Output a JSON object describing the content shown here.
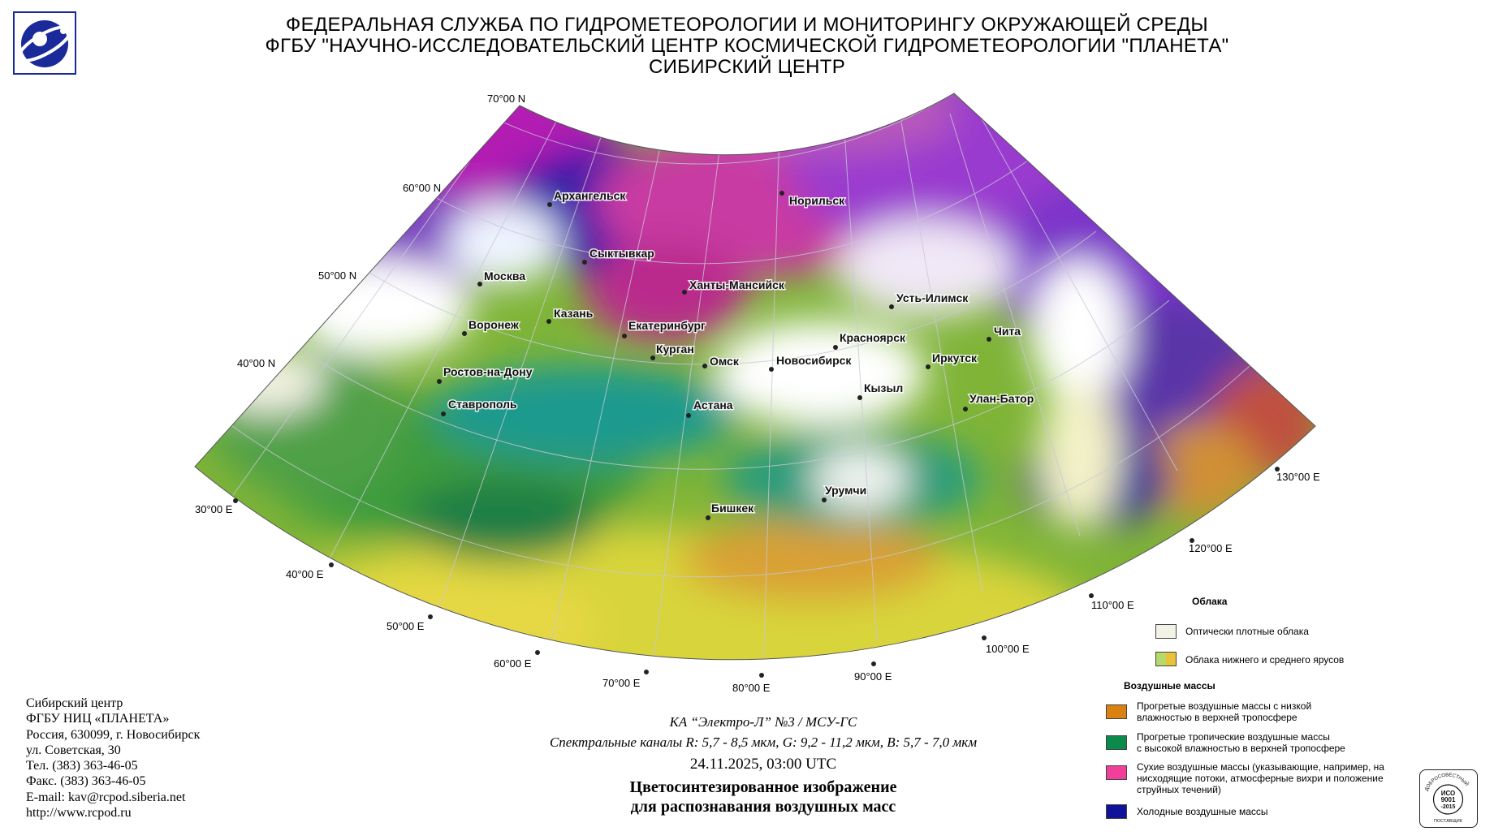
{
  "header": {
    "line1": "ФЕДЕРАЛЬНАЯ СЛУЖБА ПО ГИДРОМЕТЕОРОЛОГИИ И МОНИТОРИНГУ ОКРУЖАЮЩЕЙ СРЕДЫ",
    "line2": "ФГБУ \"НАУЧНО-ИССЛЕДОВАТЕЛЬСКИЙ ЦЕНТР КОСМИЧЕСКОЙ ГИДРОМЕТЕОРОЛОГИИ \"ПЛАНЕТА\"",
    "line3": "СИБИРСКИЙ ЦЕНТР"
  },
  "map": {
    "lat_labels": [
      "70°00 N",
      "60°00 N",
      "50°00 N",
      "40°00 N"
    ],
    "lon_labels": [
      "30°00 E",
      "40°00 E",
      "50°00 E",
      "60°00 E",
      "70°00 E",
      "80°00 E",
      "90°00 E",
      "100°00 E",
      "110°00 E",
      "120°00 E",
      "130°00 E"
    ],
    "cities": [
      "Архангельск",
      "Норильск",
      "Сыктывкар",
      "Москва",
      "Ханты-Мансийск",
      "Казань",
      "Усть-Илимск",
      "Воронеж",
      "Екатеринбург",
      "Красноярск",
      "Чита",
      "Курган",
      "Омск",
      "Новосибирск",
      "Иркутск",
      "Ростов-на-Дону",
      "Кызыл",
      "Улан-Батор",
      "Ставрополь",
      "Астана",
      "Урумчи",
      "Бишкек"
    ]
  },
  "legend": {
    "clouds_title": "Облака",
    "clouds": [
      {
        "label": "Оптически плотные облака",
        "color": "#f2f2e6"
      },
      {
        "label": "Облака нижнего и среднего ярусов",
        "color": "#b7d86a",
        "color2": "#e8c23a"
      }
    ],
    "air_title": "Воздушные массы",
    "air": [
      {
        "line1": "Прогретые воздушные массы с низкой",
        "line2": "влажностью в верхней тропосфере",
        "line3": "",
        "color": "#d9820f"
      },
      {
        "line1": "Прогретые тропичеcкие воздушные массы",
        "line2": "с высокой влажностью в верхней тропосфере",
        "line3": "",
        "color": "#0b8a4a"
      },
      {
        "line1": "Сухие воздушные массы (указывающие, например, на",
        "line2": "нисходящие потоки, атмосферные вихри и положение",
        "line3": "струйных течений)",
        "color": "#f0409a"
      },
      {
        "line1": "Холодные воздушные массы",
        "line2": "",
        "line3": "",
        "color": "#10129a"
      }
    ]
  },
  "footer_left": {
    "l1": "Сибирский центр",
    "l2": "ФГБУ НИЦ «ПЛАНЕТА»",
    "l3": "Россия, 630099, г. Новосибирск",
    "l4": "ул. Советская, 30",
    "l5": "Тел. (383) 363-46-05",
    "l6": "Факс. (383) 363-46-05",
    "l7": "E-mail: kav@rcpod.siberia.net",
    "l8": "http://www.rcpod.ru"
  },
  "caption": {
    "satellite": "КА “Электро-Л” №3 / МСУ-ГС",
    "channels": "Спектральные каналы R: 5,7 - 8,5 мкм, G: 9,2 - 11,2 мкм, B: 5,7 - 7,0 мкм",
    "datetime": "24.11.2025, 03:00 UTC",
    "title1": "Цветосинтезированное изображение",
    "title2": "для распознавания воздушных масс"
  },
  "iso_badge": {
    "top": "ДОБРОСОВЕСТНЫЙ",
    "l1": "ИСО",
    "l2": "9001",
    "l3": "-2015",
    "bottom": "ПОСТАВЩИК"
  }
}
